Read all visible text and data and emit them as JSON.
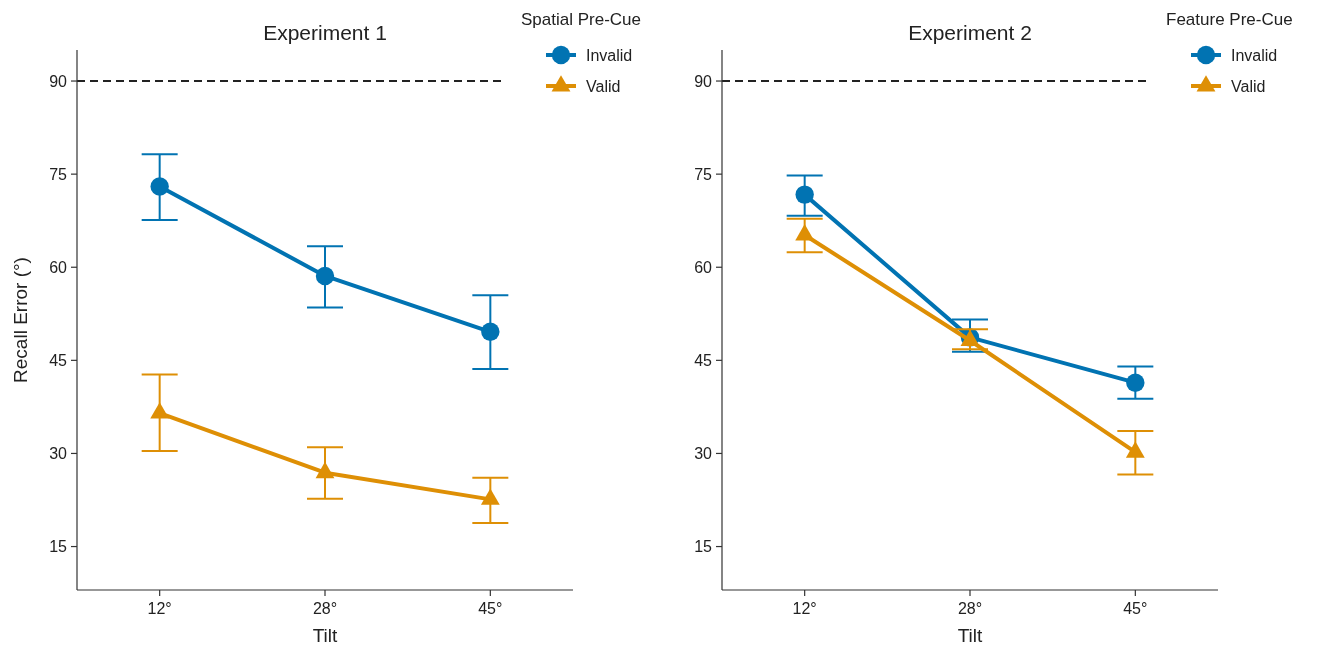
{
  "chart_data": [
    {
      "type": "line",
      "title": "Experiment 1",
      "xlabel": "Tilt",
      "ylabel": "Recall Error (°)",
      "legend_title": "Spatial Pre-Cue",
      "legend": "top right",
      "categories": [
        "12°",
        "28°",
        "45°"
      ],
      "ylim": [
        8,
        95
      ],
      "yticks": [
        15,
        30,
        45,
        60,
        75,
        90
      ],
      "grid": false,
      "line_style": "solid",
      "ref_lines": [
        {
          "axis": "y",
          "value": 90,
          "color": "#222222",
          "line_style": "dashed"
        }
      ],
      "series": [
        {
          "name": "Invalid",
          "color": "#0173b2",
          "marker": "circle",
          "values": [
            73,
            58.6,
            49.6
          ],
          "errors": [
            [
              67.6,
              78.2
            ],
            [
              53.5,
              63.4
            ],
            [
              43.6,
              55.5
            ]
          ]
        },
        {
          "name": "Valid",
          "color": "#de8f05",
          "marker": "triangle",
          "values": [
            36.5,
            26.9,
            22.6
          ],
          "errors": [
            [
              30.4,
              42.7
            ],
            [
              22.7,
              31
            ],
            [
              18.8,
              26.1
            ]
          ]
        }
      ]
    },
    {
      "type": "line",
      "title": "Experiment 2",
      "xlabel": "Tilt",
      "legend_title": "Feature Pre-Cue",
      "legend": "top right",
      "categories": [
        "12°",
        "28°",
        "45°"
      ],
      "ylim": [
        8,
        95
      ],
      "yticks": [
        15,
        30,
        45,
        60,
        75,
        90
      ],
      "grid": false,
      "line_style": "solid",
      "ref_lines": [
        {
          "axis": "y",
          "value": 90,
          "color": "#222222",
          "line_style": "dashed"
        }
      ],
      "series": [
        {
          "name": "Invalid",
          "color": "#0173b2",
          "marker": "circle",
          "values": [
            71.7,
            48.7,
            41.4
          ],
          "errors": [
            [
              68.3,
              74.8
            ],
            [
              46.4,
              51.6
            ],
            [
              38.8,
              44
            ]
          ]
        },
        {
          "name": "Valid",
          "color": "#de8f05",
          "marker": "triangle",
          "values": [
            65.2,
            48.2,
            30.2
          ],
          "errors": [
            [
              62.4,
              67.8
            ],
            [
              46.8,
              50
            ],
            [
              26.6,
              33.6
            ]
          ]
        }
      ]
    }
  ]
}
